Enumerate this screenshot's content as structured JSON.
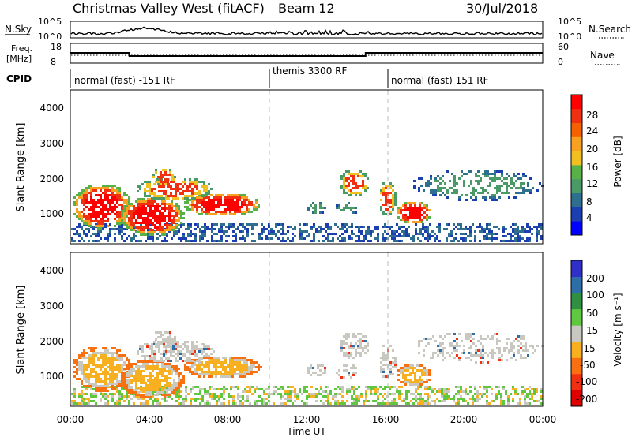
{
  "header": {
    "station": "Christmas Valley West (fitACF)",
    "beam": "Beam 12",
    "date": "30/Jul/2018"
  },
  "summary_panels": {
    "nsky": {
      "label": "N.Sky",
      "ticks": [
        "10^5",
        "10^0"
      ]
    },
    "nsearch": {
      "label": "N.Search",
      "ticks": [
        "10^5",
        "10^0"
      ]
    },
    "freq": {
      "label_line1": "Freq.",
      "label_line2": "[MHz]",
      "ticks": [
        "18",
        "8"
      ]
    },
    "nave": {
      "label": "Nave",
      "ticks": [
        "60",
        "0"
      ]
    },
    "cpid": {
      "label": "CPID",
      "segments": [
        "normal (fast) -151 RF",
        "themis 3300 RF",
        "normal (fast) 151 RF"
      ]
    }
  },
  "chart_data": [
    {
      "type": "line",
      "name": "Frequency",
      "xlabel": "Time UT",
      "x": [
        "00:00",
        "03:00",
        "03:00",
        "15:00",
        "15:00",
        "24:00"
      ],
      "values": [
        13.2,
        13.2,
        11.6,
        11.6,
        13.2,
        13.2
      ],
      "ylim": [
        8,
        18
      ]
    },
    {
      "type": "heatmap",
      "ylabel": "Slant Range [km]",
      "xlabel": "Time UT",
      "x_ticks": [
        "00:00",
        "04:00",
        "08:00",
        "12:00",
        "16:00",
        "20:00",
        "00:00"
      ],
      "y_ticks": [
        "1000",
        "2000",
        "3000",
        "4000"
      ],
      "colorbar": {
        "label": "Power [dB]",
        "ticks": [
          "28",
          "24",
          "20",
          "16",
          "12",
          "8",
          "4"
        ],
        "colors": [
          "#0000ff",
          "#1b3fb0",
          "#2e6e8e",
          "#4a9a68",
          "#58b048",
          "#f0c020",
          "#f8a020",
          "#f56000",
          "#f03010",
          "#ff0000"
        ]
      }
    },
    {
      "type": "heatmap",
      "ylabel": "Slant Range [km]",
      "xlabel": "Time UT",
      "x_ticks": [
        "00:00",
        "04:00",
        "08:00",
        "12:00",
        "16:00",
        "20:00",
        "00:00"
      ],
      "y_ticks": [
        "1000",
        "2000",
        "3000",
        "4000"
      ],
      "colorbar": {
        "label": "Velocity [m s⁻¹]",
        "ticks": [
          "200",
          "100",
          "50",
          "15",
          "-15",
          "-50",
          "-100",
          "-200"
        ],
        "colors": [
          "#3030c8",
          "#2e6ea8",
          "#2e9040",
          "#60c840",
          "#c8c8c0",
          "#f8b020",
          "#f87010",
          "#f03010",
          "#e00000"
        ]
      }
    }
  ],
  "time_axis": {
    "label": "Time UT",
    "ticks": [
      "00:00",
      "04:00",
      "08:00",
      "12:00",
      "16:00",
      "20:00",
      "00:00"
    ]
  }
}
